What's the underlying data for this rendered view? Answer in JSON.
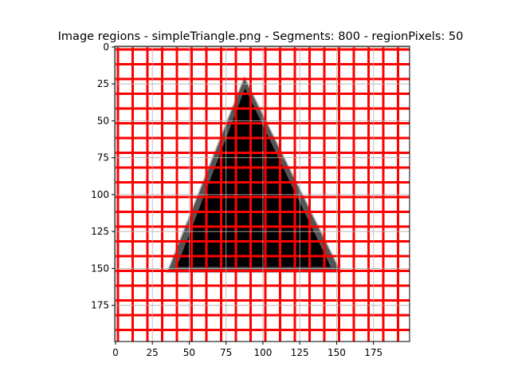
{
  "chart_data": {
    "type": "heatmap",
    "title": "Image regions - simpleTriangle.png - Segments: 800 - regionPixels: 50",
    "xlabel": "",
    "ylabel": "",
    "image_size": [
      200,
      200
    ],
    "xlim": [
      -0.5,
      199.5
    ],
    "ylim": [
      199.5,
      -0.5
    ],
    "y_axis_inverted": true,
    "grid": true,
    "x_ticks": [
      0,
      25,
      50,
      75,
      100,
      125,
      150,
      175
    ],
    "y_ticks": [
      0,
      25,
      50,
      75,
      100,
      125,
      150,
      175
    ],
    "triangle_vertices": [
      [
        87.5,
        22
      ],
      [
        36,
        152
      ],
      [
        152,
        152
      ]
    ],
    "region_grid_spacing": 10,
    "colors": {
      "segment_boundary": "#ff0000",
      "triangle_fill": "#000000",
      "triangle_edge_dark": "#555555",
      "triangle_edge_light": "#bbbbbb",
      "background": "#ffffff",
      "grid": "#b0b0b0",
      "axes": "#000000"
    }
  }
}
